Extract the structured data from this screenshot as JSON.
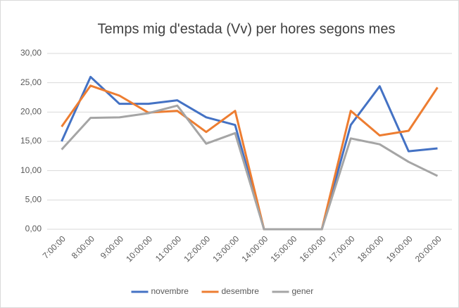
{
  "chart_data": {
    "type": "line",
    "title": "Temps mig d'estada (Vv) per hores segons mes",
    "categories": [
      "7:00:00",
      "8:00:00",
      "9:00:00",
      "10:00:00",
      "11:00:00",
      "12:00:00",
      "13:00:00",
      "14:00:00",
      "15:00:00",
      "16:00:00",
      "17:00:00",
      "18:00:00",
      "19:00:00",
      "20:00:00"
    ],
    "series": [
      {
        "name": "novembre",
        "color": "#4472c4",
        "values": [
          15.0,
          26.0,
          21.4,
          21.4,
          22.0,
          19.1,
          17.8,
          0,
          0,
          0,
          17.8,
          24.4,
          13.3,
          13.8
        ]
      },
      {
        "name": "desembre",
        "color": "#ed7d31",
        "values": [
          17.5,
          24.5,
          22.8,
          19.9,
          20.2,
          16.6,
          20.2,
          0,
          0,
          0,
          20.2,
          16.0,
          16.8,
          24.2
        ]
      },
      {
        "name": "gener",
        "color": "#a5a5a5",
        "values": [
          13.6,
          19.0,
          19.1,
          19.8,
          21.1,
          14.6,
          16.4,
          0,
          0,
          0,
          15.5,
          14.5,
          11.5,
          9.1
        ]
      }
    ],
    "ylim": [
      0,
      30
    ],
    "yticks": [
      {
        "value": 0,
        "label": "0,00"
      },
      {
        "value": 5,
        "label": "5,00"
      },
      {
        "value": 10,
        "label": "10,00"
      },
      {
        "value": 15,
        "label": "15,00"
      },
      {
        "value": 20,
        "label": "20,00"
      },
      {
        "value": 25,
        "label": "25,00"
      },
      {
        "value": 30,
        "label": "30,00"
      }
    ],
    "grid": true,
    "legend": "bottom"
  }
}
